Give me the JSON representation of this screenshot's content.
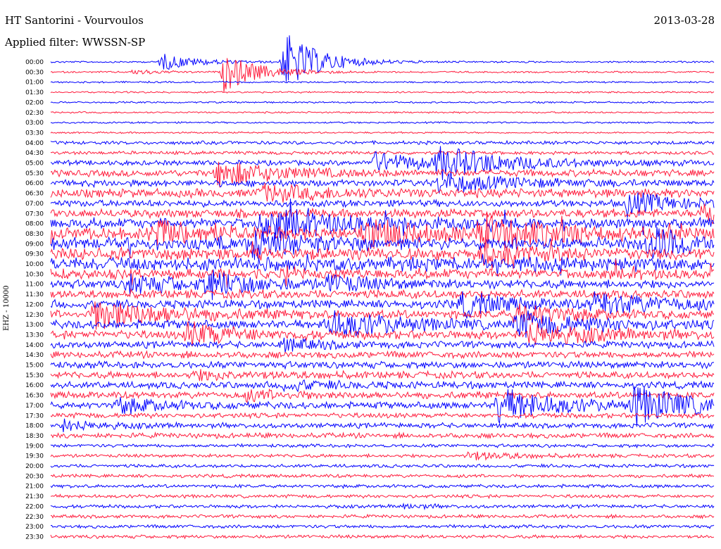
{
  "header": {
    "station": "HT Santorini - Vourvoulos",
    "date": "2013-03-28",
    "filter_label": "Applied filter: WWSSN-SP"
  },
  "chart_data": {
    "type": "line",
    "title": "HT Santorini - Vourvoulos",
    "ylabel": "EHZ - 10000",
    "row_times": [
      "00:00",
      "00:30",
      "01:00",
      "01:30",
      "02:00",
      "02:30",
      "03:00",
      "03:30",
      "04:00",
      "04:30",
      "05:00",
      "05:30",
      "06:00",
      "06:30",
      "07:00",
      "07:30",
      "08:00",
      "08:30",
      "09:00",
      "09:30",
      "10:00",
      "10:30",
      "11:00",
      "11:30",
      "12:00",
      "12:30",
      "13:00",
      "13:30",
      "14:00",
      "14:30",
      "15:00",
      "15:30",
      "16:00",
      "16:30",
      "17:00",
      "17:30",
      "18:00",
      "18:30",
      "19:00",
      "19:30",
      "20:00",
      "20:30",
      "21:00",
      "21:30",
      "22:00",
      "22:30",
      "23:00",
      "23:30"
    ],
    "row_minutes": 30,
    "trace_colors": [
      "#0000ff",
      "#ff1b3c"
    ],
    "noise_level": [
      1,
      1,
      1,
      1,
      1,
      1,
      1,
      1,
      2,
      2,
      3,
      4,
      4,
      5,
      4,
      5,
      6,
      7,
      7,
      7,
      8,
      6,
      5,
      5,
      5,
      5,
      5,
      5,
      4,
      4,
      4,
      4,
      4,
      4,
      4,
      3,
      3,
      3,
      2,
      2,
      2,
      2,
      2,
      2,
      2,
      2,
      2,
      2
    ],
    "events": [
      {
        "row": 0,
        "minute": 5.0,
        "amp": 12,
        "dur": 1.5
      },
      {
        "row": 0,
        "minute": 10.5,
        "amp": 45,
        "dur": 1.5
      },
      {
        "row": 1,
        "minute": 7.8,
        "amp": 28,
        "dur": 1.5
      },
      {
        "row": 1,
        "minute": 3.8,
        "amp": 4,
        "dur": 1
      },
      {
        "row": 10,
        "minute": 14.5,
        "amp": 14,
        "dur": 2.5
      },
      {
        "row": 10,
        "minute": 17.5,
        "amp": 20,
        "dur": 3
      },
      {
        "row": 11,
        "minute": 7.5,
        "amp": 18,
        "dur": 2.5
      },
      {
        "row": 12,
        "minute": 17.5,
        "amp": 12,
        "dur": 3
      },
      {
        "row": 13,
        "minute": 9.5,
        "amp": 10,
        "dur": 3
      },
      {
        "row": 14,
        "minute": 26.0,
        "amp": 16,
        "dur": 2
      },
      {
        "row": 15,
        "minute": 29.5,
        "amp": 18,
        "dur": 2
      },
      {
        "row": 16,
        "minute": 9.5,
        "amp": 22,
        "dur": 3
      },
      {
        "row": 17,
        "minute": 4.5,
        "amp": 20,
        "dur": 2
      },
      {
        "row": 17,
        "minute": 14.0,
        "amp": 18,
        "dur": 3
      },
      {
        "row": 17,
        "minute": 19.5,
        "amp": 20,
        "dur": 3
      },
      {
        "row": 18,
        "minute": 9.0,
        "amp": 22,
        "dur": 2
      },
      {
        "row": 18,
        "minute": 27.0,
        "amp": 24,
        "dur": 2
      },
      {
        "row": 19,
        "minute": 19.5,
        "amp": 12,
        "dur": 2
      },
      {
        "row": 22,
        "minute": 3.5,
        "amp": 14,
        "dur": 2
      },
      {
        "row": 22,
        "minute": 7.0,
        "amp": 18,
        "dur": 2
      },
      {
        "row": 22,
        "minute": 12.5,
        "amp": 10,
        "dur": 2
      },
      {
        "row": 24,
        "minute": 18.5,
        "amp": 16,
        "dur": 2
      },
      {
        "row": 24,
        "minute": 24.5,
        "amp": 14,
        "dur": 3
      },
      {
        "row": 25,
        "minute": 2.0,
        "amp": 20,
        "dur": 3
      },
      {
        "row": 25,
        "minute": 21.0,
        "amp": 16,
        "dur": 2
      },
      {
        "row": 26,
        "minute": 12.5,
        "amp": 18,
        "dur": 3
      },
      {
        "row": 26,
        "minute": 21.0,
        "amp": 16,
        "dur": 3
      },
      {
        "row": 27,
        "minute": 6.2,
        "amp": 16,
        "dur": 2
      },
      {
        "row": 27,
        "minute": 21.5,
        "amp": 14,
        "dur": 3
      },
      {
        "row": 28,
        "minute": 10.5,
        "amp": 8,
        "dur": 1.5
      },
      {
        "row": 31,
        "minute": 6.5,
        "amp": 5,
        "dur": 3
      },
      {
        "row": 32,
        "minute": 10.5,
        "amp": 6,
        "dur": 2
      },
      {
        "row": 33,
        "minute": 8.8,
        "amp": 6,
        "dur": 2
      },
      {
        "row": 34,
        "minute": 3.0,
        "amp": 10,
        "dur": 2
      },
      {
        "row": 34,
        "minute": 20.2,
        "amp": 24,
        "dur": 2.5
      },
      {
        "row": 34,
        "minute": 26.3,
        "amp": 26,
        "dur": 2.5
      },
      {
        "row": 36,
        "minute": 0.5,
        "amp": 8,
        "dur": 1.5
      },
      {
        "row": 39,
        "minute": 18.8,
        "amp": 6,
        "dur": 2
      },
      {
        "row": 44,
        "minute": 15.8,
        "amp": 4,
        "dur": 1
      }
    ]
  }
}
